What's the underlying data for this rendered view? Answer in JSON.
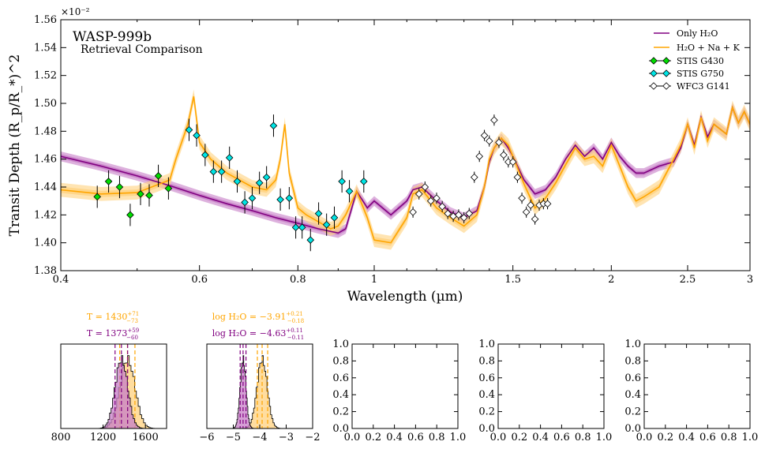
{
  "colors": {
    "only_h2o": "#800080",
    "only_h2o_band": "#c77dc7",
    "h2o_na_k": "#ffa500",
    "h2o_na_k_band": "#ffd27f",
    "stis_g430": "#00dd00",
    "stis_g750": "#00e5e5",
    "wfc3_g141": "#ffffff"
  },
  "chart_data": [
    {
      "type": "line",
      "title": "WASP-999b",
      "subtitle": "Retrieval Comparison",
      "xlabel": "Wavelength (µm)",
      "ylabel": "Transit Depth (R_p/R_*)^2",
      "y_multiplier": "×10⁻²",
      "x_scale": "log",
      "xlim": [
        0.4,
        3.0
      ],
      "ylim": [
        1.38,
        1.56
      ],
      "x_ticks": [
        0.4,
        0.6,
        0.8,
        1,
        1.5,
        2,
        2.5,
        3
      ],
      "x_tick_labels": [
        "0.4",
        "0.6",
        "0.8",
        "1",
        "1.5",
        "2",
        "2.5",
        "3"
      ],
      "y_ticks": [
        1.38,
        1.4,
        1.42,
        1.44,
        1.46,
        1.48,
        1.5,
        1.52,
        1.54,
        1.56
      ],
      "y_tick_labels": [
        "1.38",
        "1.40",
        "1.42",
        "1.44",
        "1.46",
        "1.48",
        "1.50",
        "1.52",
        "1.54",
        "1.56"
      ],
      "grid": false,
      "legend_position": "top-right",
      "legend": [
        {
          "label": "Only H₂O",
          "kind": "line",
          "color": "#800080"
        },
        {
          "label": "H₂O + Na + K",
          "kind": "line",
          "color": "#ffa500"
        },
        {
          "label": "STIS G430",
          "kind": "errorbar",
          "color": "#00dd00"
        },
        {
          "label": "STIS G750",
          "kind": "errorbar",
          "color": "#00e5e5"
        },
        {
          "label": "WFC3 G141",
          "kind": "errorbar",
          "color": "#ffffff"
        }
      ],
      "series": [
        {
          "name": "Only H₂O",
          "kind": "model",
          "color": "#800080",
          "band": 0.0035,
          "x": [
            0.4,
            0.45,
            0.5,
            0.55,
            0.6,
            0.65,
            0.7,
            0.75,
            0.8,
            0.85,
            0.9,
            0.92,
            0.95,
            0.98,
            1.0,
            1.05,
            1.1,
            1.12,
            1.15,
            1.2,
            1.25,
            1.3,
            1.35,
            1.38,
            1.4,
            1.42,
            1.45,
            1.48,
            1.5,
            1.55,
            1.6,
            1.65,
            1.7,
            1.75,
            1.8,
            1.85,
            1.9,
            1.95,
            2.0,
            2.05,
            2.1,
            2.15,
            2.2,
            2.3,
            2.4,
            2.45,
            2.5,
            2.55,
            2.6,
            2.65,
            2.7,
            2.8,
            2.85,
            2.9,
            2.95,
            3.0
          ],
          "y": [
            1.462,
            1.455,
            1.448,
            1.441,
            1.434,
            1.428,
            1.423,
            1.418,
            1.414,
            1.41,
            1.407,
            1.41,
            1.437,
            1.425,
            1.43,
            1.42,
            1.43,
            1.438,
            1.44,
            1.43,
            1.422,
            1.418,
            1.423,
            1.44,
            1.458,
            1.468,
            1.475,
            1.468,
            1.462,
            1.445,
            1.435,
            1.438,
            1.447,
            1.46,
            1.47,
            1.462,
            1.468,
            1.46,
            1.472,
            1.462,
            1.455,
            1.45,
            1.45,
            1.455,
            1.458,
            1.468,
            1.485,
            1.47,
            1.49,
            1.476,
            1.485,
            1.478,
            1.497,
            1.486,
            1.494,
            1.485
          ]
        },
        {
          "name": "H₂O + Na + K",
          "kind": "model",
          "color": "#ffa500",
          "band": 0.005,
          "x": [
            0.4,
            0.45,
            0.5,
            0.55,
            0.56,
            0.58,
            0.59,
            0.6,
            0.62,
            0.65,
            0.7,
            0.73,
            0.75,
            0.76,
            0.77,
            0.78,
            0.8,
            0.82,
            0.85,
            0.88,
            0.9,
            0.92,
            0.95,
            0.98,
            1.0,
            1.05,
            1.1,
            1.12,
            1.15,
            1.2,
            1.25,
            1.3,
            1.35,
            1.38,
            1.4,
            1.42,
            1.45,
            1.48,
            1.5,
            1.55,
            1.6,
            1.65,
            1.7,
            1.75,
            1.8,
            1.85,
            1.9,
            1.95,
            2.0,
            2.05,
            2.1,
            2.15,
            2.2,
            2.3,
            2.4,
            2.45,
            2.5,
            2.55,
            2.6,
            2.65,
            2.7,
            2.8,
            2.85,
            2.9,
            2.95,
            3.0
          ],
          "y": [
            1.438,
            1.435,
            1.436,
            1.445,
            1.46,
            1.485,
            1.505,
            1.472,
            1.46,
            1.45,
            1.44,
            1.438,
            1.445,
            1.46,
            1.485,
            1.45,
            1.425,
            1.42,
            1.415,
            1.41,
            1.412,
            1.42,
            1.437,
            1.418,
            1.402,
            1.4,
            1.418,
            1.435,
            1.438,
            1.425,
            1.418,
            1.412,
            1.42,
            1.44,
            1.46,
            1.468,
            1.475,
            1.47,
            1.462,
            1.442,
            1.425,
            1.432,
            1.443,
            1.456,
            1.468,
            1.46,
            1.462,
            1.455,
            1.47,
            1.455,
            1.44,
            1.43,
            1.433,
            1.44,
            1.46,
            1.47,
            1.485,
            1.468,
            1.49,
            1.473,
            1.485,
            1.478,
            1.497,
            1.486,
            1.494,
            1.485
          ]
        },
        {
          "name": "STIS G430",
          "kind": "errorbar",
          "color": "#00dd00",
          "x": [
            0.445,
            0.46,
            0.475,
            0.49,
            0.505,
            0.518,
            0.532,
            0.548
          ],
          "y": [
            1.433,
            1.444,
            1.44,
            1.42,
            1.435,
            1.434,
            1.448,
            1.439
          ],
          "err": [
            0.008,
            0.008,
            0.008,
            0.008,
            0.008,
            0.008,
            0.008,
            0.008
          ]
        },
        {
          "name": "STIS G750",
          "kind": "errorbar",
          "color": "#00e5e5",
          "x": [
            0.582,
            0.595,
            0.61,
            0.625,
            0.64,
            0.655,
            0.67,
            0.685,
            0.7,
            0.715,
            0.73,
            0.745,
            0.76,
            0.78,
            0.795,
            0.81,
            0.83,
            0.85,
            0.87,
            0.89,
            0.91,
            0.93,
            0.97
          ],
          "y": [
            1.481,
            1.477,
            1.463,
            1.451,
            1.451,
            1.461,
            1.444,
            1.429,
            1.432,
            1.443,
            1.447,
            1.484,
            1.431,
            1.432,
            1.411,
            1.411,
            1.402,
            1.421,
            1.413,
            1.418,
            1.444,
            1.437,
            1.444
          ],
          "err": [
            0.008,
            0.008,
            0.008,
            0.008,
            0.008,
            0.008,
            0.008,
            0.008,
            0.008,
            0.008,
            0.008,
            0.008,
            0.008,
            0.008,
            0.008,
            0.008,
            0.008,
            0.008,
            0.008,
            0.008,
            0.008,
            0.008,
            0.008
          ]
        },
        {
          "name": "WFC3 G141",
          "kind": "errorbar",
          "color": "#ffffff",
          "x": [
            1.12,
            1.14,
            1.16,
            1.18,
            1.2,
            1.22,
            1.24,
            1.26,
            1.28,
            1.3,
            1.32,
            1.34,
            1.36,
            1.38,
            1.4,
            1.42,
            1.44,
            1.46,
            1.48,
            1.5,
            1.52,
            1.54,
            1.56,
            1.58,
            1.6,
            1.62,
            1.64,
            1.66
          ],
          "y": [
            1.422,
            1.435,
            1.44,
            1.43,
            1.432,
            1.426,
            1.421,
            1.419,
            1.42,
            1.418,
            1.421,
            1.447,
            1.462,
            1.477,
            1.473,
            1.488,
            1.472,
            1.463,
            1.458,
            1.458,
            1.447,
            1.432,
            1.422,
            1.427,
            1.417,
            1.427,
            1.428,
            1.428
          ],
          "err": [
            0.004,
            0.004,
            0.004,
            0.004,
            0.004,
            0.004,
            0.004,
            0.004,
            0.004,
            0.004,
            0.004,
            0.004,
            0.004,
            0.004,
            0.004,
            0.004,
            0.004,
            0.004,
            0.004,
            0.004,
            0.004,
            0.004,
            0.004,
            0.004,
            0.004,
            0.004,
            0.004,
            0.004
          ]
        }
      ]
    },
    {
      "type": "histogram",
      "title_lines": [
        {
          "text": "T = 1430",
          "sup": "+71",
          "sub": "−73",
          "color": "#ffa500"
        },
        {
          "text": "T = 1373",
          "sup": "+59",
          "sub": "−60",
          "color": "#800080"
        }
      ],
      "xlim": [
        800,
        1800
      ],
      "x_ticks": [
        800,
        1200,
        1600
      ],
      "x_tick_labels": [
        "800",
        "1200",
        "1600"
      ],
      "series": [
        {
          "name": "H₂O + Na + K",
          "color": "#ffa500",
          "median": 1430,
          "plus": 71,
          "minus": 73
        },
        {
          "name": "Only H₂O",
          "color": "#800080",
          "median": 1373,
          "plus": 59,
          "minus": 60
        }
      ]
    },
    {
      "type": "histogram",
      "title_lines": [
        {
          "text": "log H₂O = −3.91",
          "sup": "+0.21",
          "sub": "−0.18",
          "color": "#ffa500"
        },
        {
          "text": "log H₂O = −4.63",
          "sup": "+0.11",
          "sub": "−0.11",
          "color": "#800080"
        }
      ],
      "xlim": [
        -6,
        -2
      ],
      "x_ticks": [
        -6,
        -5,
        -4,
        -3,
        -2
      ],
      "x_tick_labels": [
        "−6",
        "−5",
        "−4",
        "−3",
        "−2"
      ],
      "series": [
        {
          "name": "H₂O + Na + K",
          "color": "#ffa500",
          "median": -3.91,
          "plus": 0.21,
          "minus": 0.18
        },
        {
          "name": "Only H₂O",
          "color": "#800080",
          "median": -4.63,
          "plus": 0.11,
          "minus": 0.11
        }
      ]
    },
    {
      "type": "empty",
      "xlim": [
        0,
        1
      ],
      "ylim": [
        0,
        1
      ],
      "x_tick_labels": [
        "0.0",
        "0.2",
        "0.4",
        "0.6",
        "0.8",
        "1.0"
      ],
      "y_tick_labels": [
        "0.0",
        "0.2",
        "0.4",
        "0.6",
        "0.8",
        "1.0"
      ]
    },
    {
      "type": "empty",
      "xlim": [
        0,
        1
      ],
      "ylim": [
        0,
        1
      ],
      "x_tick_labels": [
        "0.0",
        "0.2",
        "0.4",
        "0.6",
        "0.8",
        "1.0"
      ],
      "y_tick_labels": [
        "0.0",
        "0.2",
        "0.4",
        "0.6",
        "0.8",
        "1.0"
      ]
    },
    {
      "type": "empty",
      "xlim": [
        0,
        1
      ],
      "ylim": [
        0,
        1
      ],
      "x_tick_labels": [
        "0.0",
        "0.2",
        "0.4",
        "0.6",
        "0.8",
        "1.0"
      ],
      "y_tick_labels": [
        "0.0",
        "0.2",
        "0.4",
        "0.6",
        "0.8",
        "1.0"
      ]
    }
  ]
}
